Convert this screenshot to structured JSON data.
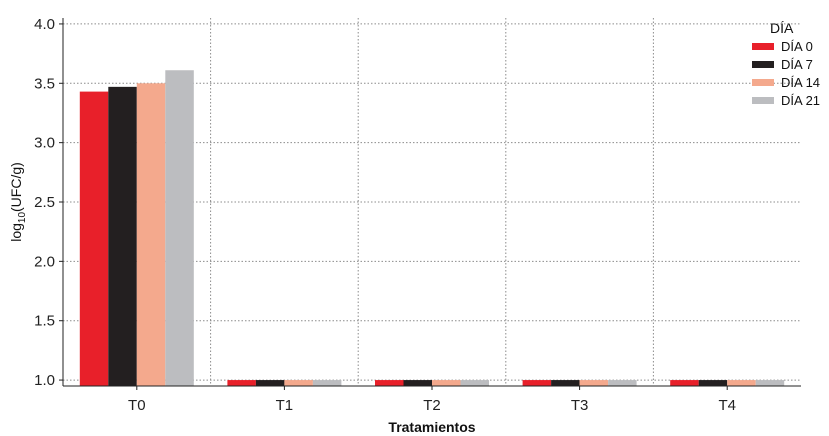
{
  "chart_data": {
    "type": "bar",
    "title": "",
    "xlabel": "Tratamientos",
    "ylabel": "log10(UFC/g)",
    "ylabel_parts": {
      "base": "log",
      "sub": "10",
      "rest": "(UFC/g)"
    },
    "ylim": [
      0.95,
      4.05
    ],
    "yticks": [
      "1.0",
      "1.5",
      "2.0",
      "2.5",
      "3.0",
      "3.5",
      "4.0"
    ],
    "ytick_values": [
      1.0,
      1.5,
      2.0,
      2.5,
      3.0,
      3.5,
      4.0
    ],
    "categories": [
      "T0",
      "T1",
      "T2",
      "T3",
      "T4"
    ],
    "series": [
      {
        "name": "DÍA 0",
        "color": "#e8202a",
        "values": [
          3.43,
          1.0,
          1.0,
          1.0,
          1.0
        ]
      },
      {
        "name": "DÍA 7",
        "color": "#231f20",
        "values": [
          3.47,
          1.0,
          1.0,
          1.0,
          1.0
        ]
      },
      {
        "name": "DÍA 14",
        "color": "#f4a98d",
        "values": [
          3.5,
          1.0,
          1.0,
          1.0,
          1.0
        ]
      },
      {
        "name": "DÍA 21",
        "color": "#bcbdc0",
        "values": [
          3.61,
          1.0,
          1.0,
          1.0,
          1.0
        ]
      }
    ],
    "legend": {
      "title": "DÍA",
      "position": "top-right"
    },
    "grid": true
  }
}
